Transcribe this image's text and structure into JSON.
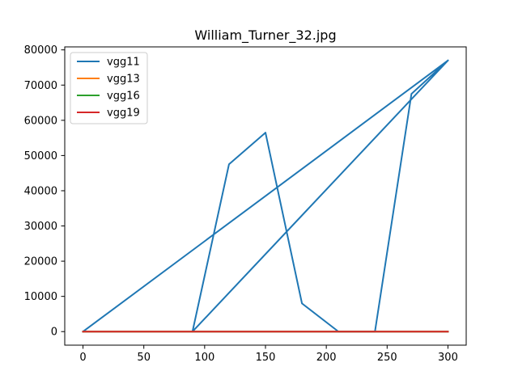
{
  "chart_data": {
    "type": "line",
    "title": "William_Turner_32.jpg",
    "xlabel": "",
    "ylabel": "",
    "xlim": [
      -15,
      315
    ],
    "ylim": [
      -3850,
      80850
    ],
    "xticks": [
      0,
      50,
      100,
      150,
      200,
      250,
      300
    ],
    "yticks": [
      0,
      10000,
      20000,
      30000,
      40000,
      50000,
      60000,
      70000,
      80000
    ],
    "grid": false,
    "legend_position": "upper-left",
    "series": [
      {
        "name": "vgg11",
        "color": "#1f77b4",
        "x": [
          0,
          300,
          90,
          120,
          150,
          180,
          210,
          240,
          270,
          300
        ],
        "y": [
          0,
          77000,
          0,
          47500,
          56500,
          8000,
          0,
          0,
          67500,
          77000
        ]
      },
      {
        "name": "vgg13",
        "color": "#ff7f0e",
        "x": [
          0,
          300
        ],
        "y": [
          0,
          0
        ]
      },
      {
        "name": "vgg16",
        "color": "#2ca02c",
        "x": [
          0,
          300
        ],
        "y": [
          0,
          0
        ]
      },
      {
        "name": "vgg19",
        "color": "#d62728",
        "x": [
          0,
          300
        ],
        "y": [
          0,
          0
        ]
      }
    ]
  }
}
